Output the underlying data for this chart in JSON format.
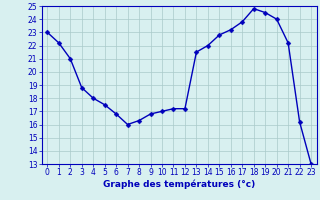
{
  "hours": [
    0,
    1,
    2,
    3,
    4,
    5,
    6,
    7,
    8,
    9,
    10,
    11,
    12,
    13,
    14,
    15,
    16,
    17,
    18,
    19,
    20,
    21,
    22,
    23
  ],
  "temperatures": [
    23.0,
    22.2,
    21.0,
    18.8,
    18.0,
    17.5,
    16.8,
    16.0,
    16.3,
    16.8,
    17.0,
    17.2,
    17.2,
    21.5,
    22.0,
    22.8,
    23.2,
    23.8,
    24.8,
    24.5,
    24.0,
    22.2,
    16.2,
    13.0
  ],
  "line_color": "#0000bb",
  "marker": "D",
  "marker_size": 2.5,
  "bg_color": "#d8f0f0",
  "grid_color": "#aacaca",
  "ylim": [
    13,
    25
  ],
  "xlim": [
    -0.5,
    23.5
  ],
  "yticks": [
    13,
    14,
    15,
    16,
    17,
    18,
    19,
    20,
    21,
    22,
    23,
    24,
    25
  ],
  "xticks": [
    0,
    1,
    2,
    3,
    4,
    5,
    6,
    7,
    8,
    9,
    10,
    11,
    12,
    13,
    14,
    15,
    16,
    17,
    18,
    19,
    20,
    21,
    22,
    23
  ],
  "tick_label_color": "#0000bb",
  "tick_label_fontsize": 5.5,
  "xlabel": "Graphe des températures (°c)",
  "xlabel_fontsize": 6.5,
  "xlabel_color": "#0000bb",
  "xlabel_fontweight": "bold",
  "spine_color": "#0000bb",
  "linewidth": 1.0
}
